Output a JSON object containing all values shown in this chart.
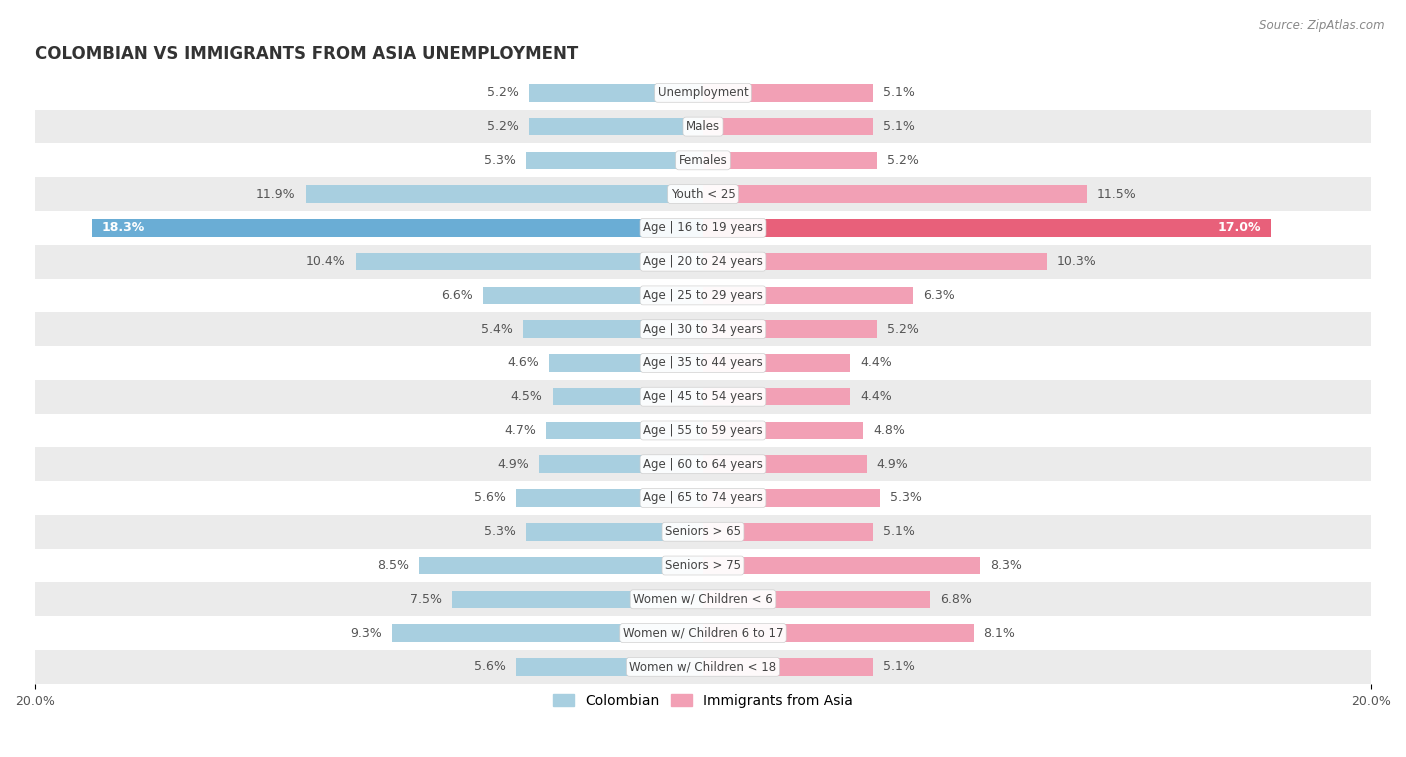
{
  "title": "COLOMBIAN VS IMMIGRANTS FROM ASIA UNEMPLOYMENT",
  "source": "Source: ZipAtlas.com",
  "categories": [
    "Unemployment",
    "Males",
    "Females",
    "Youth < 25",
    "Age | 16 to 19 years",
    "Age | 20 to 24 years",
    "Age | 25 to 29 years",
    "Age | 30 to 34 years",
    "Age | 35 to 44 years",
    "Age | 45 to 54 years",
    "Age | 55 to 59 years",
    "Age | 60 to 64 years",
    "Age | 65 to 74 years",
    "Seniors > 65",
    "Seniors > 75",
    "Women w/ Children < 6",
    "Women w/ Children 6 to 17",
    "Women w/ Children < 18"
  ],
  "colombian": [
    5.2,
    5.2,
    5.3,
    11.9,
    18.3,
    10.4,
    6.6,
    5.4,
    4.6,
    4.5,
    4.7,
    4.9,
    5.6,
    5.3,
    8.5,
    7.5,
    9.3,
    5.6
  ],
  "asian": [
    5.1,
    5.1,
    5.2,
    11.5,
    17.0,
    10.3,
    6.3,
    5.2,
    4.4,
    4.4,
    4.8,
    4.9,
    5.3,
    5.1,
    8.3,
    6.8,
    8.1,
    5.1
  ],
  "colombian_color": "#a8cfe0",
  "asian_color": "#f2a0b5",
  "colombian_highlight_color": "#6aadd5",
  "asian_highlight_color": "#e8607a",
  "highlight_row": 4,
  "x_max": 20.0,
  "bar_height": 0.52,
  "background_color": "#ffffff",
  "row_bg_light": "#ffffff",
  "row_bg_dark": "#ebebeb",
  "legend_colombian": "Colombian",
  "legend_asian": "Immigrants from Asia",
  "label_fontsize": 9.0,
  "cat_fontsize": 8.5
}
